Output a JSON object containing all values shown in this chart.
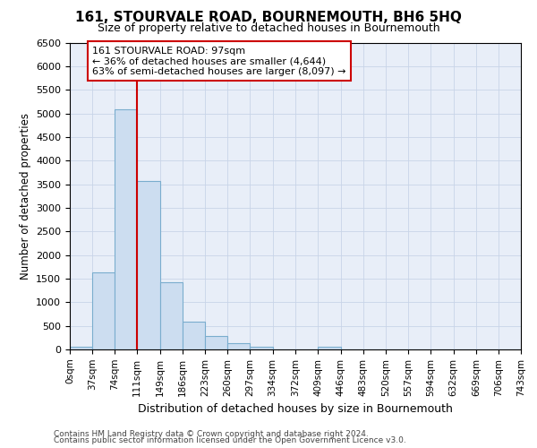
{
  "title": "161, STOURVALE ROAD, BOURNEMOUTH, BH6 5HQ",
  "subtitle": "Size of property relative to detached houses in Bournemouth",
  "xlabel": "Distribution of detached houses by size in Bournemouth",
  "ylabel": "Number of detached properties",
  "footnote1": "Contains HM Land Registry data © Crown copyright and database right 2024.",
  "footnote2": "Contains public sector information licensed under the Open Government Licence v3.0.",
  "annotation_line1": "161 STOURVALE ROAD: 97sqm",
  "annotation_line2": "← 36% of detached houses are smaller (4,644)",
  "annotation_line3": "63% of semi-detached houses are larger (8,097) →",
  "property_size": 97,
  "bin_edges": [
    0,
    37,
    74,
    111,
    149,
    186,
    223,
    260,
    297,
    334,
    372,
    409,
    446,
    483,
    520,
    557,
    594,
    632,
    669,
    706,
    743
  ],
  "bar_heights": [
    60,
    1630,
    5080,
    3560,
    1420,
    580,
    280,
    140,
    60,
    0,
    0,
    60,
    0,
    0,
    0,
    0,
    0,
    0,
    0,
    0
  ],
  "bar_color": "#ccddf0",
  "bar_edge_color": "#7aadce",
  "vline_color": "#cc0000",
  "vline_x": 111,
  "ylim": [
    0,
    6500
  ],
  "yticks": [
    0,
    500,
    1000,
    1500,
    2000,
    2500,
    3000,
    3500,
    4000,
    4500,
    5000,
    5500,
    6000,
    6500
  ],
  "annotation_box_color": "#ffffff",
  "annotation_box_edge": "#cc0000",
  "grid_color": "#c8d4e8",
  "background_color": "#e8eef8",
  "title_fontsize": 11,
  "subtitle_fontsize": 9,
  "ylabel_fontsize": 8.5,
  "xlabel_fontsize": 9,
  "ytick_fontsize": 8,
  "xtick_fontsize": 7.5
}
